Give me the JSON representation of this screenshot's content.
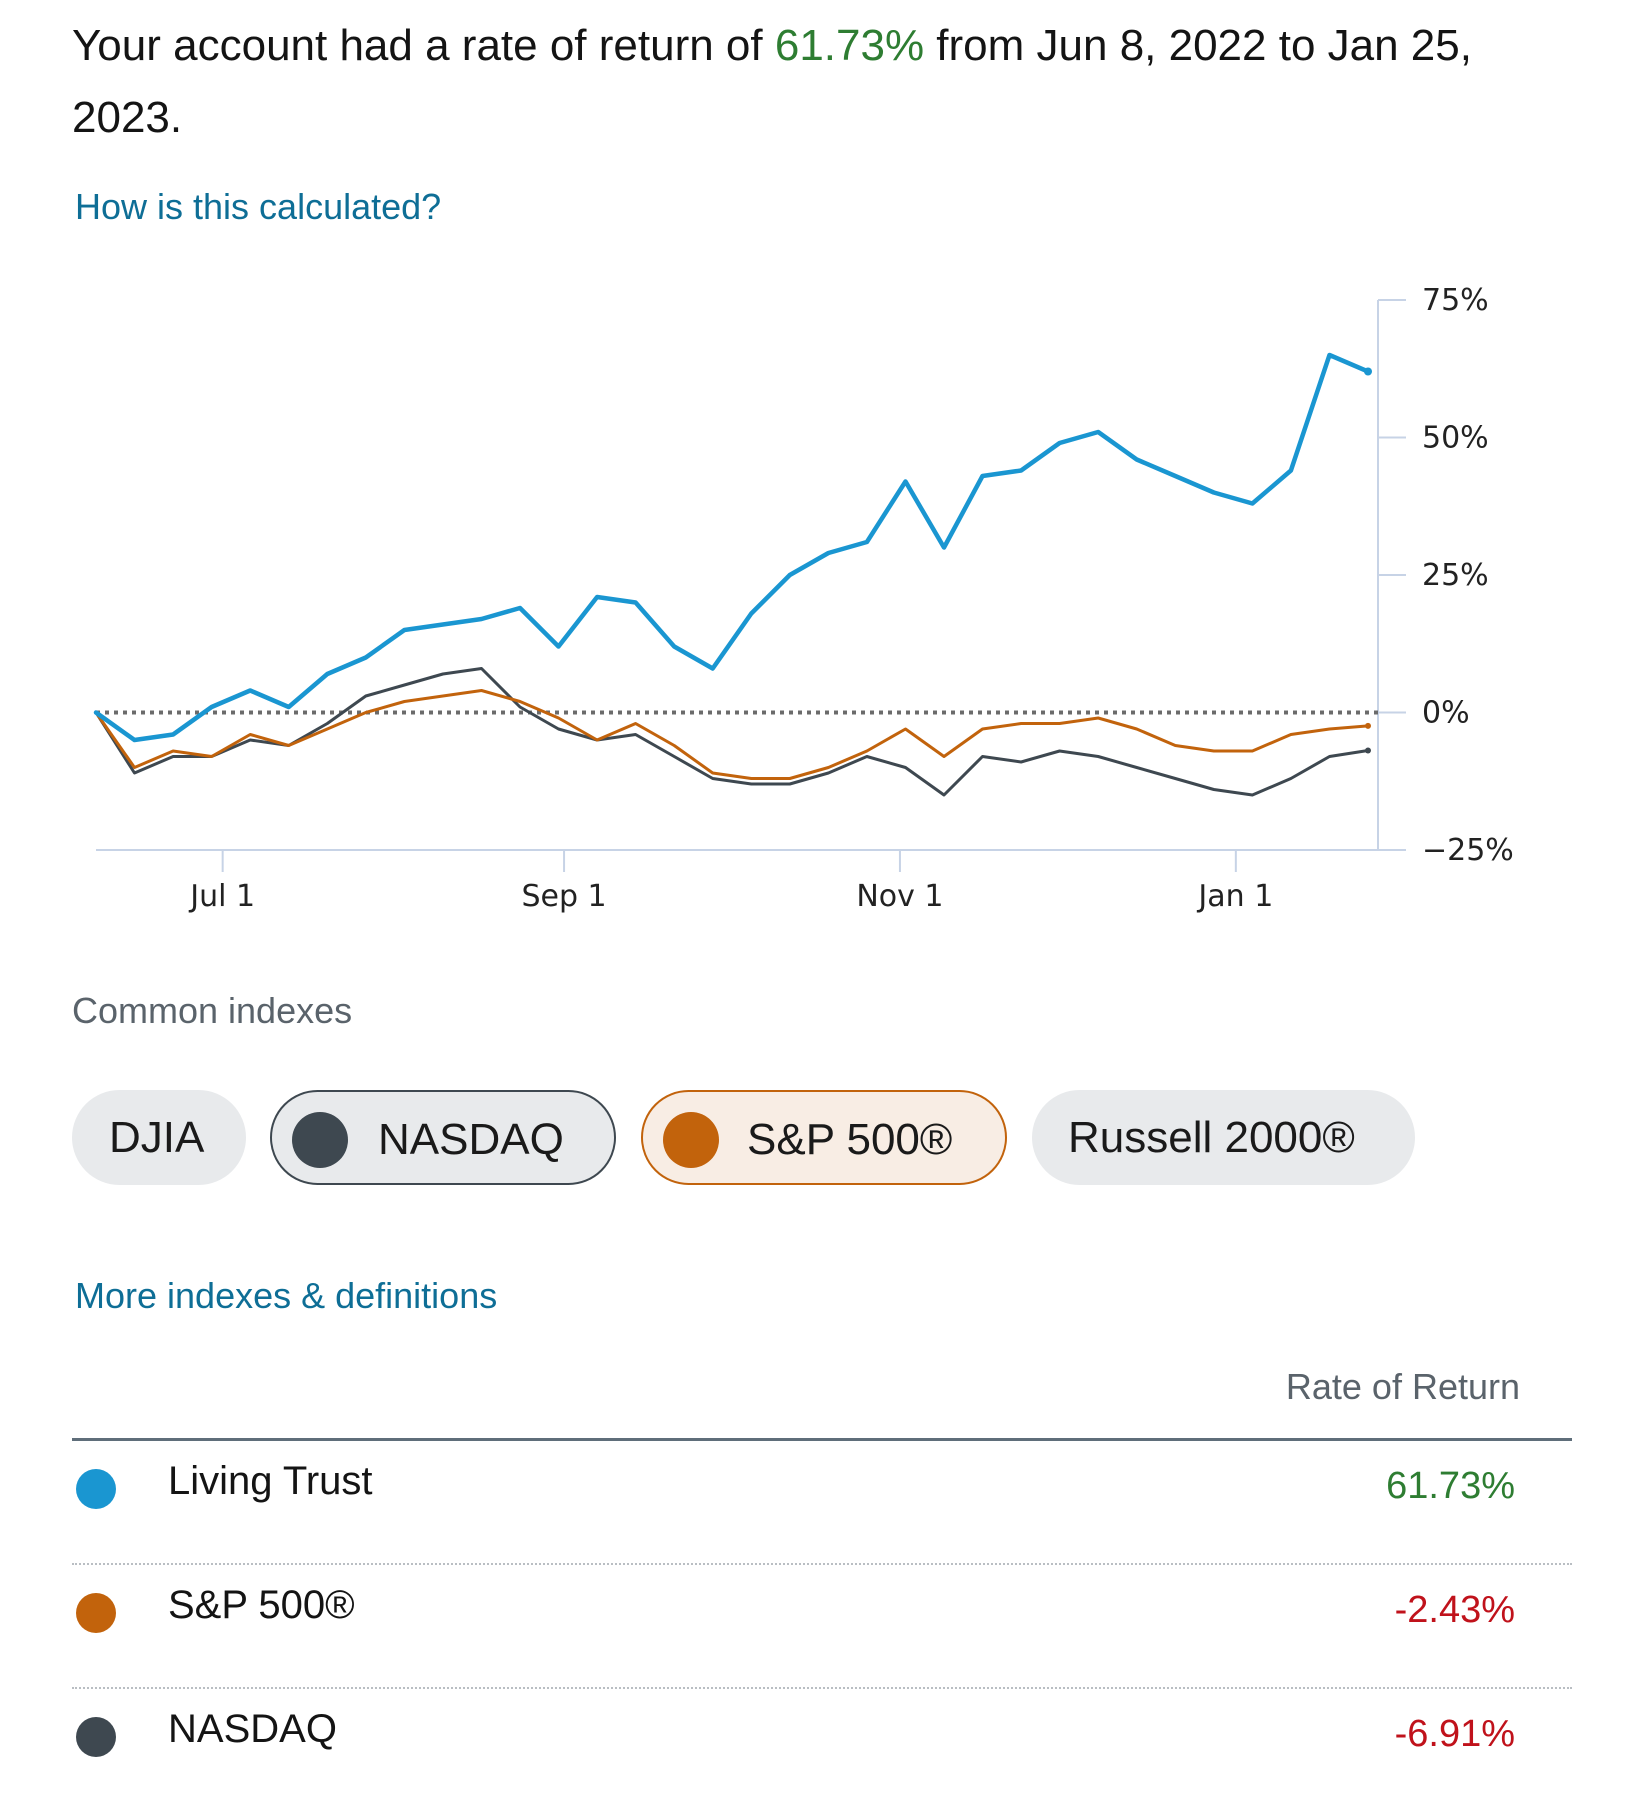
{
  "summary": {
    "prefix": "Your account had a rate of return of ",
    "rate": "61.73%",
    "suffix": " from Jun 8, 2022 to Jan 25, 2023."
  },
  "links": {
    "how_calculated": "How is this calculated?",
    "more_indexes": "More indexes & definitions"
  },
  "chart_data": {
    "type": "line",
    "title": "",
    "xlabel": "",
    "ylabel": "",
    "x_ticks": [
      "Jul 1",
      "Sep 1",
      "Nov 1",
      "Jan 1"
    ],
    "y_ticks": [
      "75%",
      "50%",
      "25%",
      "0%",
      "−25%"
    ],
    "ylim": [
      -25,
      75
    ],
    "baseline": 0,
    "x_dates": [
      "2022-06-08",
      "2022-06-15",
      "2022-06-22",
      "2022-06-29",
      "2022-07-06",
      "2022-07-13",
      "2022-07-20",
      "2022-07-27",
      "2022-08-03",
      "2022-08-10",
      "2022-08-17",
      "2022-08-24",
      "2022-08-31",
      "2022-09-07",
      "2022-09-14",
      "2022-09-21",
      "2022-09-28",
      "2022-10-05",
      "2022-10-12",
      "2022-10-19",
      "2022-10-26",
      "2022-11-02",
      "2022-11-09",
      "2022-11-16",
      "2022-11-23",
      "2022-11-30",
      "2022-12-07",
      "2022-12-14",
      "2022-12-21",
      "2022-12-28",
      "2023-01-04",
      "2023-01-11",
      "2023-01-18",
      "2023-01-25"
    ],
    "series": [
      {
        "name": "Living Trust",
        "color": "#1a96d1",
        "values": [
          0,
          -5,
          -4,
          1,
          4,
          1,
          7,
          10,
          15,
          16,
          17,
          19,
          12,
          21,
          20,
          12,
          8,
          18,
          25,
          29,
          31,
          42,
          30,
          43,
          44,
          49,
          51,
          46,
          43,
          40,
          38,
          44,
          65,
          62
        ]
      },
      {
        "name": "S&P 500®",
        "color": "#c2630c",
        "values": [
          0,
          -10,
          -7,
          -8,
          -4,
          -6,
          -3,
          0,
          2,
          3,
          4,
          2,
          -1,
          -5,
          -2,
          -6,
          -11,
          -12,
          -12,
          -10,
          -7,
          -3,
          -8,
          -3,
          -2,
          -2,
          -1,
          -3,
          -6,
          -7,
          -7,
          -4,
          -3,
          -2.43
        ]
      },
      {
        "name": "NASDAQ",
        "color": "#3e4850",
        "values": [
          0,
          -11,
          -8,
          -8,
          -5,
          -6,
          -2,
          3,
          5,
          7,
          8,
          1,
          -3,
          -5,
          -4,
          -8,
          -12,
          -13,
          -13,
          -11,
          -8,
          -10,
          -15,
          -8,
          -9,
          -7,
          -8,
          -10,
          -12,
          -14,
          -15,
          -12,
          -8,
          -6.91
        ]
      }
    ]
  },
  "indexes": {
    "heading": "Common indexes",
    "pills": [
      {
        "label": "DJIA"
      },
      {
        "label": "NASDAQ"
      },
      {
        "label": "S&P 500®"
      },
      {
        "label": "Russell 2000®"
      }
    ]
  },
  "table": {
    "header": "Rate of Return",
    "rows": [
      {
        "name": "Living Trust",
        "value": "61.73%",
        "color": "#1a96d1"
      },
      {
        "name": "S&P 500®",
        "value": "-2.43%",
        "color": "#c2630c"
      },
      {
        "name": "NASDAQ",
        "value": "-6.91%",
        "color": "#3e4850"
      }
    ]
  }
}
